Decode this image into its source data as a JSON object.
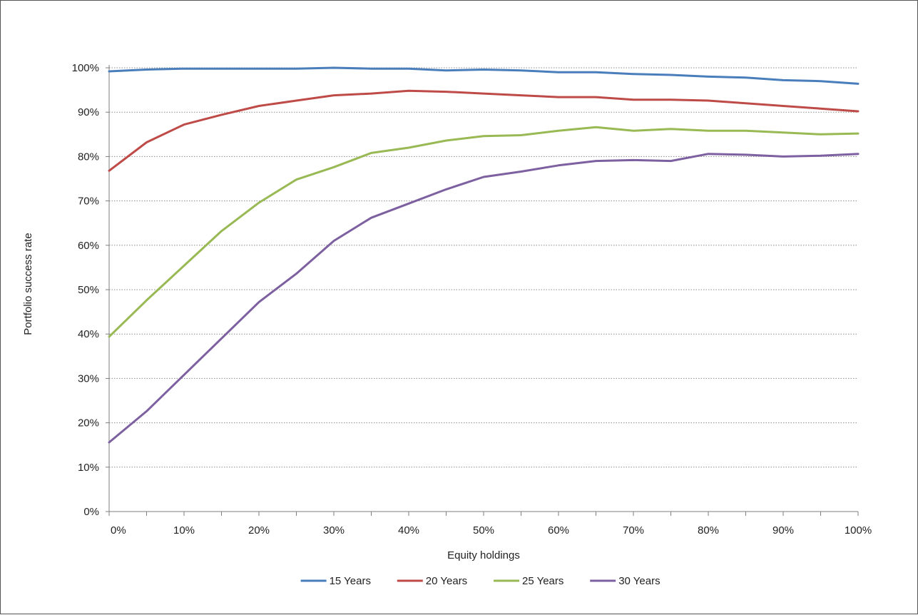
{
  "chart_data": {
    "type": "line",
    "xlabel": "Equity holdings",
    "ylabel": "Portfolio success rate",
    "x": [
      "0%",
      "5%",
      "10%",
      "15%",
      "20%",
      "25%",
      "30%",
      "35%",
      "40%",
      "45%",
      "50%",
      "55%",
      "60%",
      "65%",
      "70%",
      "75%",
      "80%",
      "85%",
      "90%",
      "95%",
      "100%"
    ],
    "x_tick_labels": [
      "0%",
      "10%",
      "20%",
      "30%",
      "40%",
      "50%",
      "60%",
      "70%",
      "80%",
      "90%",
      "100%"
    ],
    "y_tick_labels": [
      "0%",
      "10%",
      "20%",
      "30%",
      "40%",
      "50%",
      "60%",
      "70%",
      "80%",
      "90%",
      "100%"
    ],
    "ylim": [
      0,
      100
    ],
    "grid": "horizontal dotted",
    "legend_position": "bottom",
    "series": [
      {
        "name": "15 Years",
        "color": "#4A7EBB",
        "values": [
          99.2,
          99.6,
          99.8,
          99.8,
          99.8,
          99.8,
          100.0,
          99.8,
          99.8,
          99.4,
          99.6,
          99.4,
          99.0,
          99.0,
          98.6,
          98.4,
          98.0,
          97.8,
          97.2,
          97.0,
          96.4
        ]
      },
      {
        "name": "20 Years",
        "color": "#BE4B48",
        "values": [
          76.8,
          83.2,
          87.2,
          89.4,
          91.4,
          92.6,
          93.8,
          94.2,
          94.8,
          94.6,
          94.2,
          93.8,
          93.4,
          93.4,
          92.8,
          92.8,
          92.6,
          92.0,
          91.4,
          90.8,
          90.2
        ]
      },
      {
        "name": "25 Years",
        "color": "#98B954",
        "values": [
          39.4,
          47.6,
          55.4,
          63.2,
          69.6,
          74.8,
          77.6,
          80.8,
          82.0,
          83.6,
          84.6,
          84.8,
          85.8,
          86.6,
          85.8,
          86.2,
          85.8,
          85.8,
          85.4,
          85.0,
          85.2
        ]
      },
      {
        "name": "30 Years",
        "color": "#7D60A0",
        "values": [
          15.6,
          22.6,
          30.8,
          39.0,
          47.2,
          53.6,
          61.0,
          66.2,
          69.4,
          72.6,
          75.4,
          76.6,
          78.0,
          79.0,
          79.2,
          79.0,
          80.6,
          80.4,
          80.0,
          80.2,
          80.6
        ]
      }
    ]
  }
}
